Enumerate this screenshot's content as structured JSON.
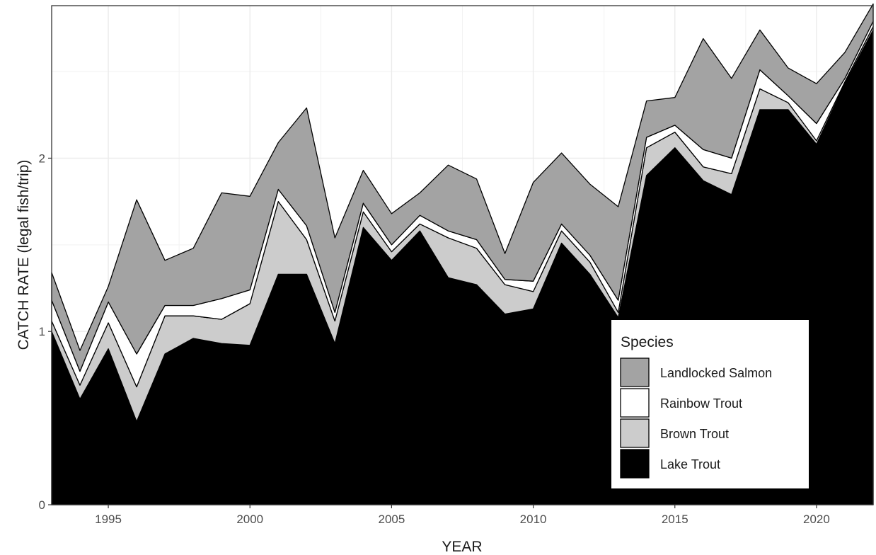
{
  "chart_data": {
    "type": "area",
    "stacked": true,
    "xlabel": "YEAR",
    "ylabel": "CATCH RATE (legal fish/trip)",
    "xlim": [
      1993,
      2022
    ],
    "ylim": [
      0,
      2.88
    ],
    "x_ticks": [
      1995,
      2000,
      2005,
      2010,
      2015,
      2020
    ],
    "y_ticks": [
      0,
      1,
      2
    ],
    "grid": true,
    "legend": {
      "title": "Species",
      "position": "bottom-right"
    },
    "x": [
      1993,
      1994,
      1995,
      1996,
      1997,
      1998,
      1999,
      2000,
      2001,
      2002,
      2003,
      2004,
      2005,
      2006,
      2007,
      2008,
      2009,
      2010,
      2011,
      2012,
      2013,
      2014,
      2015,
      2016,
      2017,
      2018,
      2019,
      2020,
      2021,
      2022
    ],
    "series": [
      {
        "name": "Lake Trout",
        "color": "#000000",
        "values": [
          1.0,
          0.61,
          0.9,
          0.48,
          0.87,
          0.96,
          0.93,
          0.92,
          1.33,
          1.33,
          0.93,
          1.6,
          1.41,
          1.58,
          1.31,
          1.27,
          1.1,
          1.13,
          1.51,
          1.33,
          1.08,
          1.9,
          2.06,
          1.87,
          1.79,
          2.28,
          2.28,
          2.08,
          2.43,
          2.74
        ]
      },
      {
        "name": "Brown Trout",
        "color": "#cccccc",
        "values": [
          0.06,
          0.08,
          0.15,
          0.2,
          0.22,
          0.13,
          0.14,
          0.24,
          0.42,
          0.2,
          0.13,
          0.09,
          0.05,
          0.04,
          0.23,
          0.21,
          0.17,
          0.1,
          0.07,
          0.07,
          0.03,
          0.16,
          0.09,
          0.08,
          0.12,
          0.12,
          0.04,
          0.02,
          0.01,
          0.02
        ]
      },
      {
        "name": "Rainbow Trout",
        "color": "#ffffff",
        "values": [
          0.12,
          0.08,
          0.12,
          0.19,
          0.06,
          0.06,
          0.12,
          0.08,
          0.07,
          0.08,
          0.05,
          0.05,
          0.04,
          0.05,
          0.04,
          0.05,
          0.03,
          0.06,
          0.04,
          0.04,
          0.07,
          0.06,
          0.04,
          0.1,
          0.09,
          0.11,
          0.04,
          0.1,
          0.02,
          0.03
        ]
      },
      {
        "name": "Landlocked Salmon",
        "color": "#a3a3a3",
        "values": [
          0.16,
          0.12,
          0.09,
          0.89,
          0.26,
          0.33,
          0.61,
          0.54,
          0.27,
          0.68,
          0.43,
          0.19,
          0.18,
          0.13,
          0.38,
          0.35,
          0.15,
          0.57,
          0.41,
          0.41,
          0.54,
          0.21,
          0.16,
          0.64,
          0.46,
          0.23,
          0.16,
          0.23,
          0.15,
          0.1
        ]
      }
    ]
  }
}
